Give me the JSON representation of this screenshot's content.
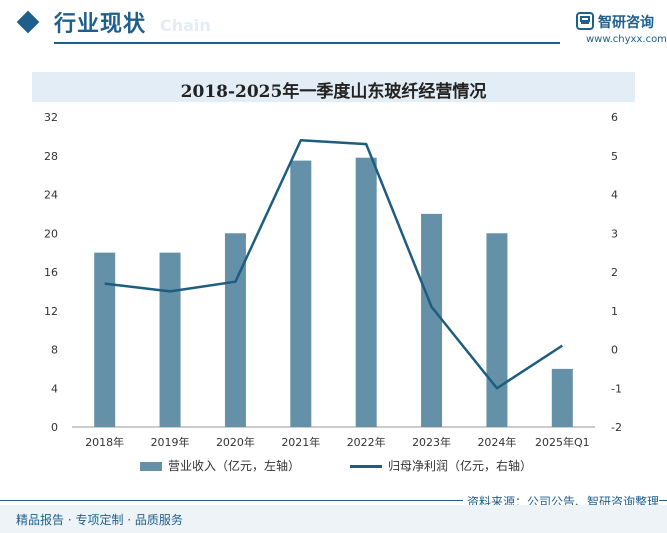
{
  "header": {
    "section_title": "行业现状",
    "section_ghost": "Chain",
    "logo_name": "智研咨询",
    "logo_url": "www.chyxx.com"
  },
  "colors": {
    "accent": "#1f5f8b",
    "bar": "#6591a8",
    "line": "#1d5d7f",
    "title_band": "#e3edf5"
  },
  "chart_data": {
    "type": "bar",
    "title": "2018-2025年一季度山东玻纤经营情况",
    "categories": [
      "2018年",
      "2019年",
      "2020年",
      "2021年",
      "2022年",
      "2023年",
      "2024年",
      "2025年Q1"
    ],
    "series": [
      {
        "name": "营业收入（亿元，左轴）",
        "type": "bar",
        "axis": "left",
        "values": [
          18,
          18,
          20,
          27.5,
          27.8,
          22,
          20,
          6
        ]
      },
      {
        "name": "归母净利润（亿元，右轴）",
        "type": "line",
        "axis": "right",
        "values": [
          1.7,
          1.5,
          1.75,
          5.4,
          5.3,
          1.1,
          -1.0,
          0.1
        ]
      }
    ],
    "y_left": {
      "min": 0,
      "max": 32,
      "ticks": [
        0,
        4,
        8,
        12,
        16,
        20,
        24,
        28,
        32
      ]
    },
    "y_right": {
      "min": -2,
      "max": 6,
      "ticks": [
        -2,
        -1,
        0,
        1,
        2,
        3,
        4,
        5,
        6
      ]
    },
    "grid": false,
    "legend_position": "bottom"
  },
  "footer": {
    "source": "资料来源：公司公告、智研咨询整理",
    "tagline": "精品报告 · 专项定制 · 品质服务"
  }
}
